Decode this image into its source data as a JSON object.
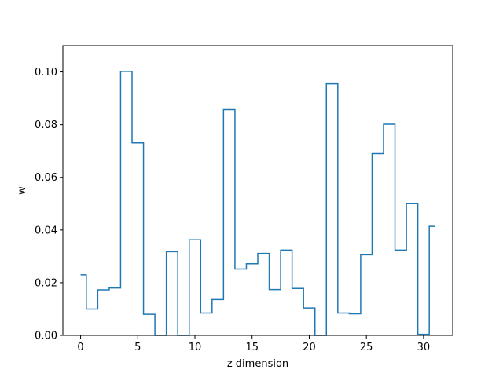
{
  "chart_data": {
    "type": "line",
    "drawstyle": "steps-mid",
    "title": "",
    "xlabel": "z dimension",
    "ylabel": "w",
    "xlim": [
      -1.55,
      32.55
    ],
    "ylim": [
      0.0,
      0.11
    ],
    "xticks": [
      0,
      5,
      10,
      15,
      20,
      25,
      30
    ],
    "xtick_labels": [
      "0",
      "5",
      "10",
      "15",
      "20",
      "25",
      "30"
    ],
    "yticks": [
      0.0,
      0.02,
      0.04,
      0.06,
      0.08,
      0.1
    ],
    "ytick_labels": [
      "0.00",
      "0.02",
      "0.04",
      "0.06",
      "0.08",
      "0.10"
    ],
    "grid": false,
    "series": [
      {
        "color": "#1f77b4",
        "x": [
          0,
          1,
          2,
          3,
          4,
          5,
          6,
          7,
          8,
          9,
          10,
          11,
          12,
          13,
          14,
          15,
          16,
          17,
          18,
          19,
          20,
          21,
          22,
          23,
          24,
          25,
          26,
          27,
          28,
          29,
          30,
          31
        ],
        "y": [
          0.023,
          0.01,
          0.0173,
          0.018,
          0.1002,
          0.0731,
          0.008,
          0.0,
          0.0318,
          0.0,
          0.0363,
          0.0085,
          0.0136,
          0.0857,
          0.0252,
          0.0272,
          0.0311,
          0.0174,
          0.0324,
          0.0178,
          0.0104,
          0.0,
          0.0955,
          0.0085,
          0.0082,
          0.0306,
          0.069,
          0.0802,
          0.0324,
          0.05,
          0.0004,
          0.0414
        ]
      }
    ]
  }
}
